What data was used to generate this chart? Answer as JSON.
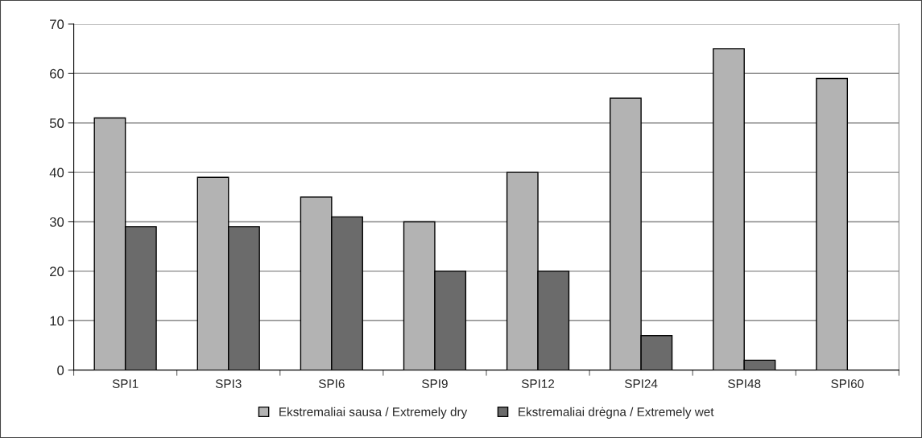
{
  "chart_data": {
    "type": "bar",
    "categories": [
      "SPI1",
      "SPI3",
      "SPI6",
      "SPI9",
      "SPI12",
      "SPI24",
      "SPI48",
      "SPI60"
    ],
    "series": [
      {
        "name": "Ekstremaliai sausa / Extremely dry",
        "color": "#b3b3b3",
        "values": [
          51,
          39,
          35,
          30,
          40,
          55,
          65,
          59
        ]
      },
      {
        "name": "Ekstremaliai drėgna / Extremely wet",
        "color": "#6b6b6b",
        "values": [
          29,
          29,
          31,
          20,
          20,
          7,
          2,
          null
        ]
      }
    ],
    "ylim": [
      0,
      70
    ],
    "yticks": [
      0,
      10,
      20,
      30,
      40,
      50,
      60,
      70
    ],
    "grid": "y",
    "legend": "bottom"
  }
}
